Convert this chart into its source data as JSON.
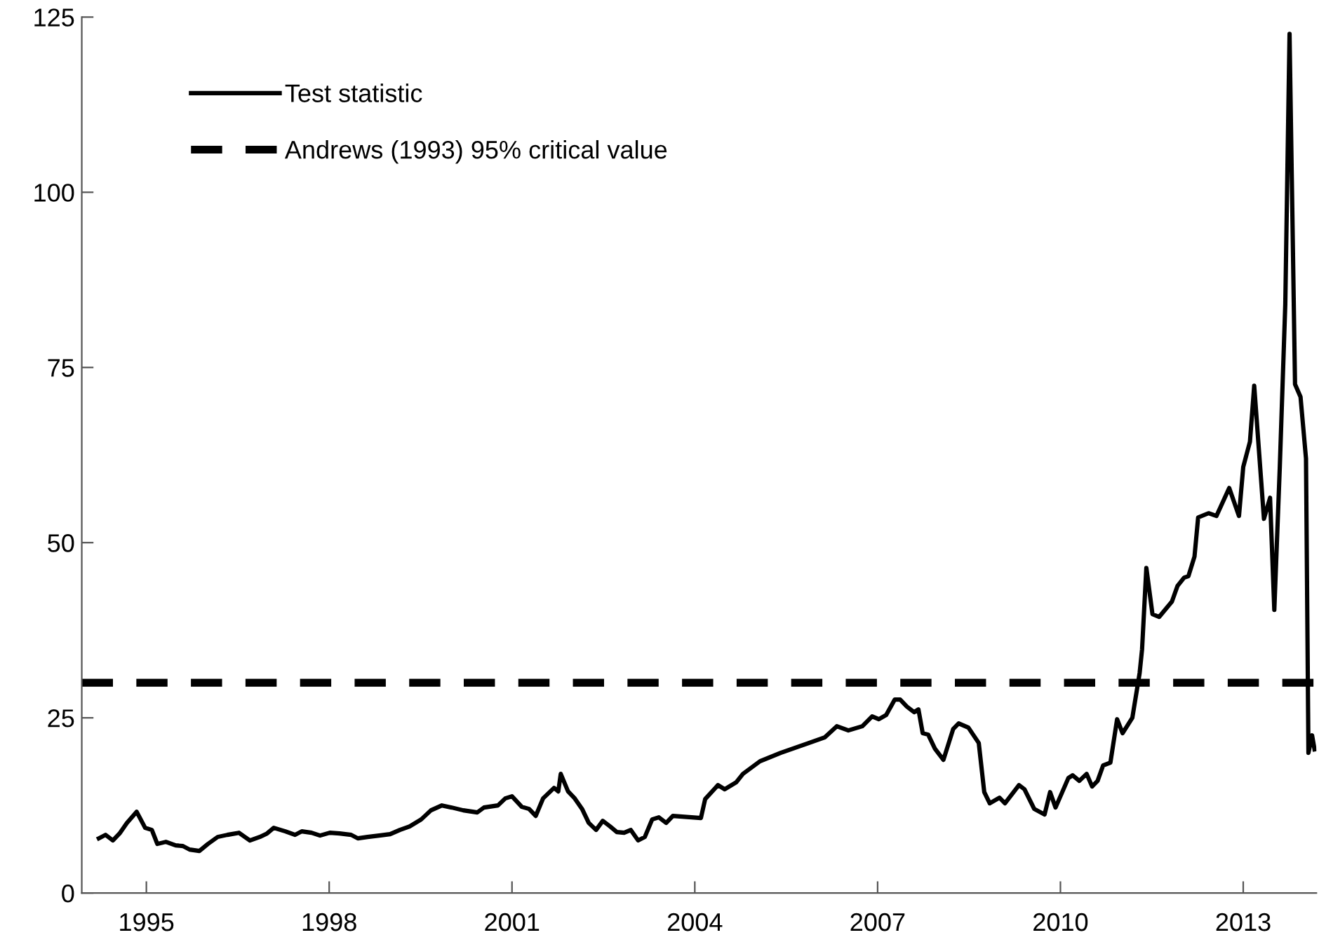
{
  "chart_data": {
    "type": "line",
    "legend": "top left",
    "grid": false,
    "line_style": "solid",
    "marker": "none",
    "xlim": [
      1993.94,
      2014.2
    ],
    "xticks": [
      1995,
      1998,
      2001,
      2004,
      2007,
      2010,
      2013
    ],
    "ylim": [
      0,
      125
    ],
    "yticks": [
      0,
      25,
      50,
      75,
      100,
      125
    ],
    "ref_lines": [
      {
        "axis": "y",
        "value": 30,
        "label": "Andrews (1993) 95% critical value",
        "color": "#000000",
        "line_style": "dashed"
      }
    ],
    "series": [
      {
        "name": "Test statistic",
        "color": "#000000",
        "x": [
          1994.22,
          1994.33,
          1994.45,
          1994.56,
          1994.68,
          1994.84,
          1994.98,
          1995.09,
          1995.18,
          1995.32,
          1995.48,
          1995.6,
          1995.71,
          1995.87,
          1996.01,
          1996.17,
          1996.33,
          1996.52,
          1996.7,
          1996.86,
          1996.98,
          1997.09,
          1997.28,
          1997.44,
          1997.55,
          1997.71,
          1997.85,
          1998.01,
          1998.17,
          1998.36,
          1998.47,
          1998.63,
          1998.82,
          1999.0,
          1999.16,
          1999.32,
          1999.51,
          1999.67,
          1999.85,
          2000.01,
          2000.2,
          2000.43,
          2000.54,
          2000.77,
          2000.89,
          2001.0,
          2001.16,
          2001.28,
          2001.39,
          2001.51,
          2001.69,
          2001.76,
          2001.8,
          2001.92,
          2002.03,
          2002.15,
          2002.26,
          2002.38,
          2002.49,
          2002.61,
          2002.72,
          2002.84,
          2002.95,
          2003.07,
          2003.18,
          2003.3,
          2003.41,
          2003.53,
          2003.64,
          2004.1,
          2004.17,
          2004.38,
          2004.49,
          2004.68,
          2004.79,
          2005.07,
          2005.41,
          2005.87,
          2006.13,
          2006.33,
          2006.52,
          2006.75,
          2006.91,
          2007.02,
          2007.14,
          2007.28,
          2007.37,
          2007.48,
          2007.6,
          2007.67,
          2007.74,
          2007.83,
          2007.94,
          2008.08,
          2008.24,
          2008.33,
          2008.49,
          2008.66,
          2008.75,
          2008.84,
          2009.0,
          2009.09,
          2009.32,
          2009.41,
          2009.57,
          2009.74,
          2009.83,
          2009.92,
          2010.13,
          2010.2,
          2010.31,
          2010.43,
          2010.52,
          2010.61,
          2010.7,
          2010.82,
          2010.93,
          2011.02,
          2011.18,
          2011.3,
          2011.34,
          2011.41,
          2011.51,
          2011.62,
          2011.83,
          2011.92,
          2012.03,
          2012.1,
          2012.2,
          2012.26,
          2012.43,
          2012.56,
          2012.77,
          2012.93,
          2013.0,
          2013.11,
          2013.18,
          2013.34,
          2013.44,
          2013.51,
          2013.6,
          2013.69,
          2013.76,
          2013.85,
          2013.94,
          2014.03,
          2014.07,
          2014.13,
          2014.17
        ],
        "values": [
          7.8,
          8.3,
          7.5,
          8.5,
          10,
          11.6,
          9.3,
          9,
          7,
          7.3,
          6.8,
          6.7,
          6.2,
          6,
          7,
          8,
          8.3,
          8.6,
          7.5,
          8,
          8.5,
          9.3,
          8.8,
          8.3,
          8.8,
          8.6,
          8.2,
          8.6,
          8.5,
          8.3,
          7.8,
          8,
          8.2,
          8.4,
          9,
          9.5,
          10.5,
          11.8,
          12.5,
          12.2,
          11.8,
          11.5,
          12.2,
          12.5,
          13.5,
          13.8,
          12.3,
          12,
          11,
          13.5,
          15,
          14.5,
          17,
          14.5,
          13.5,
          12,
          10,
          9,
          10.3,
          9.5,
          8.7,
          8.6,
          9,
          7.5,
          8,
          10.5,
          10.8,
          10,
          11,
          10.7,
          13.4,
          15.4,
          14.8,
          15.8,
          17,
          18.8,
          20,
          21.4,
          22.2,
          23.8,
          23.2,
          23.8,
          25.2,
          24.8,
          25.4,
          27.6,
          27.6,
          26.6,
          25.8,
          26.2,
          22.8,
          22.6,
          20.6,
          19,
          23.4,
          24.2,
          23.6,
          21.4,
          14.4,
          12.8,
          13.6,
          12.8,
          15.4,
          14.8,
          12,
          11.2,
          14.4,
          12.2,
          16.4,
          16.8,
          16,
          17,
          15.2,
          16,
          18.2,
          18.6,
          24.8,
          22.8,
          25,
          31.4,
          34.8,
          46.4,
          39.8,
          39.4,
          41.6,
          43.8,
          45,
          45.2,
          48,
          53.6,
          54.2,
          53.8,
          57.8,
          53.8,
          60.8,
          64.4,
          72.4,
          53.4,
          56.4,
          40.4,
          60.8,
          84,
          122.6,
          72.6,
          70.8,
          62,
          20,
          22.5,
          20.5
        ]
      }
    ]
  }
}
